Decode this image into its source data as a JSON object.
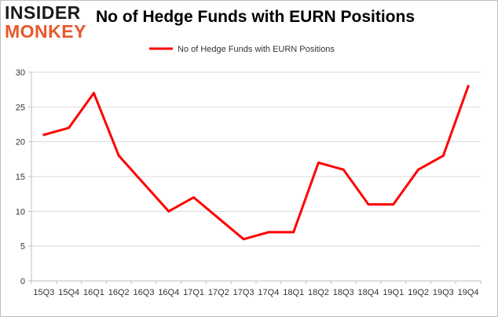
{
  "logo": {
    "line1": "INSIDER",
    "line2": "MONKEY"
  },
  "title": "No of Hedge Funds with EURN Positions",
  "colors": {
    "line": "#ff0000",
    "grid": "#d9d9d9",
    "axis": "#bfbfbf",
    "logo_accent": "#e8572a"
  },
  "chart_data": {
    "type": "line",
    "title": "No of Hedge Funds with EURN Positions",
    "xlabel": "",
    "ylabel": "",
    "ylim": [
      0,
      30
    ],
    "yticks": [
      0,
      5,
      10,
      15,
      20,
      25,
      30
    ],
    "grid": true,
    "legend_position": "top-center",
    "categories": [
      "15Q3",
      "15Q4",
      "16Q1",
      "16Q2",
      "16Q3",
      "16Q4",
      "17Q1",
      "17Q2",
      "17Q3",
      "17Q4",
      "18Q1",
      "18Q2",
      "18Q3",
      "18Q4",
      "19Q1",
      "19Q2",
      "19Q3",
      "19Q4"
    ],
    "series": [
      {
        "name": "No of Hedge Funds with EURN Positions",
        "values": [
          21,
          22,
          27,
          18,
          14,
          10,
          12,
          9,
          6,
          7,
          7,
          17,
          16,
          11,
          11,
          16,
          18,
          28
        ]
      }
    ]
  }
}
